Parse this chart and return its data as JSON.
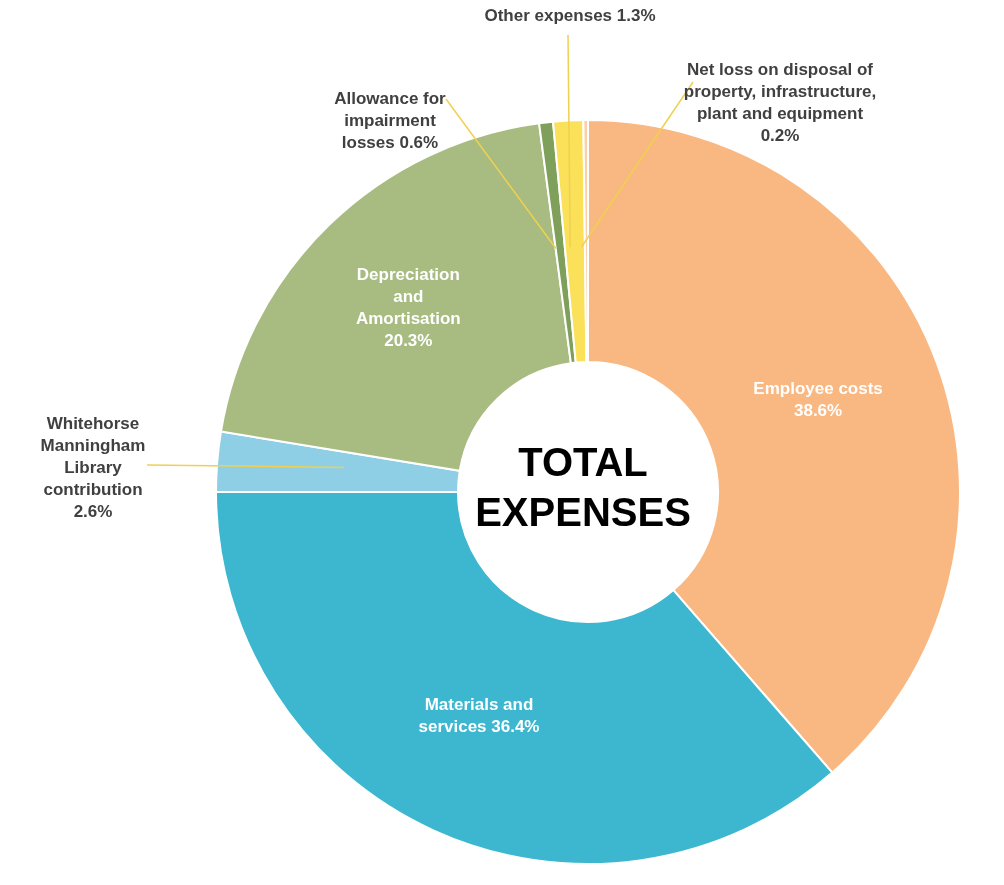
{
  "chart_data": {
    "type": "donut",
    "title": "TOTAL EXPENSES",
    "categories": [
      "Employee costs",
      "Materials and services",
      "Whitehorse Manningham Library contribution",
      "Depreciation and Amortisation",
      "Allowance for impairment losses",
      "Other expenses",
      "Net loss on disposal of property, infrastructure, plant and equipment"
    ],
    "values": [
      38.6,
      36.4,
      2.6,
      20.3,
      0.6,
      1.3,
      0.2
    ],
    "value_labels": [
      "38.6%",
      "36.4%",
      "2.6%",
      "20.3%",
      "0.6%",
      "1.3%",
      "0.2%"
    ],
    "colors": [
      "#f9b882",
      "#3db7d0",
      "#8ecfe6",
      "#a8bc82",
      "#7fa05a",
      "#fbe05a",
      "#fbd0a8"
    ],
    "legend": false
  }
}
